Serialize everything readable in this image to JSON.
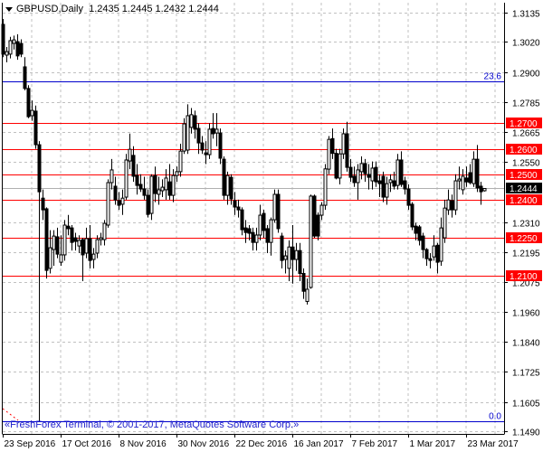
{
  "header": {
    "symbol": "GBPUSD,Daily",
    "ohlc": "1.2435 1.2445 1.2432 1.2444"
  },
  "copyright": "«FreshForex Terminal, © 2001-2017, MetaQuotes Software Corp.»",
  "colors": {
    "background": "#ffffff",
    "candle": "#000000",
    "support_resistance": "#ff0000",
    "fibonacci": "#0000cc",
    "grid": "#c0c0c0",
    "current_price_bg": "#000000"
  },
  "chart_data": {
    "type": "candlestick",
    "title": "GBPUSD,Daily",
    "ylim": [
      1.149,
      1.3135
    ],
    "grid": true,
    "y_ticks": [
      "1.3135",
      "1.3020",
      "1.2900",
      "1.2785",
      "1.2665",
      "1.2550",
      "1.2310",
      "1.2195",
      "1.2075",
      "1.1960",
      "1.1840",
      "1.1725",
      "1.1605",
      "1.1490"
    ],
    "x_ticks": [
      {
        "bar": 0,
        "label": "23 Sep 2016"
      },
      {
        "bar": 16,
        "label": "17 Oct 2016"
      },
      {
        "bar": 32,
        "label": "8 Nov 2016"
      },
      {
        "bar": 48,
        "label": "30 Nov 2016"
      },
      {
        "bar": 64,
        "label": "22 Dec 2016"
      },
      {
        "bar": 80,
        "label": "16 Jan 2017"
      },
      {
        "bar": 96,
        "label": "7 Feb 2017"
      },
      {
        "bar": 112,
        "label": "1 Mar 2017"
      },
      {
        "bar": 128,
        "label": "23 Mar 2017"
      }
    ],
    "current_price": "1.2444",
    "horizontal_levels": [
      "1.2700",
      "1.2600",
      "1.2500",
      "1.2400",
      "1.2250",
      "1.2100"
    ],
    "fibonacci_levels": [
      {
        "label": "23.6",
        "price": 1.2865
      },
      {
        "label": "0.0",
        "price": 1.153
      }
    ],
    "ohlc": [
      [
        1.3089,
        1.311,
        1.296,
        1.2972
      ],
      [
        1.2968,
        1.3,
        1.294,
        1.2982
      ],
      [
        1.2972,
        1.304,
        1.2955,
        1.3025
      ],
      [
        1.3014,
        1.3045,
        1.299,
        1.3028
      ],
      [
        1.3021,
        1.305,
        1.295,
        1.2965
      ],
      [
        1.3014,
        1.303,
        1.296,
        1.2972
      ],
      [
        1.2922,
        1.296,
        1.283,
        1.2837
      ],
      [
        1.2837,
        1.285,
        1.272,
        1.2726
      ],
      [
        1.273,
        1.279,
        1.271,
        1.2751
      ],
      [
        1.2748,
        1.277,
        1.26,
        1.2616
      ],
      [
        1.2616,
        1.263,
        1.153,
        1.2431
      ],
      [
        1.2406,
        1.244,
        1.232,
        1.236
      ],
      [
        1.2364,
        1.237,
        1.209,
        1.2122
      ],
      [
        1.213,
        1.228,
        1.211,
        1.2211
      ],
      [
        1.2204,
        1.228,
        1.214,
        1.2257
      ],
      [
        1.2254,
        1.229,
        1.217,
        1.2186
      ],
      [
        1.2154,
        1.226,
        1.214,
        1.2183
      ],
      [
        1.2183,
        1.232,
        1.216,
        1.23
      ],
      [
        1.2296,
        1.234,
        1.226,
        1.2286
      ],
      [
        1.2289,
        1.23,
        1.22,
        1.2232
      ],
      [
        1.225,
        1.227,
        1.22,
        1.2236
      ],
      [
        1.2218,
        1.226,
        1.219,
        1.224
      ],
      [
        1.2243,
        1.225,
        1.208,
        1.2183
      ],
      [
        1.219,
        1.229,
        1.217,
        1.2247
      ],
      [
        1.2247,
        1.23,
        1.213,
        1.2161
      ],
      [
        1.2165,
        1.221,
        1.213,
        1.2186
      ],
      [
        1.219,
        1.226,
        1.217,
        1.2243
      ],
      [
        1.2243,
        1.227,
        1.222,
        1.225
      ],
      [
        1.2243,
        1.232,
        1.222,
        1.2307
      ],
      [
        1.23,
        1.248,
        1.229,
        1.2467
      ],
      [
        1.2467,
        1.256,
        1.244,
        1.2517
      ],
      [
        1.2453,
        1.249,
        1.238,
        1.2399
      ],
      [
        1.2396,
        1.243,
        1.236,
        1.2378
      ],
      [
        1.2382,
        1.244,
        1.234,
        1.2406
      ],
      [
        1.241,
        1.258,
        1.24,
        1.2556
      ],
      [
        1.2552,
        1.266,
        1.252,
        1.2598
      ],
      [
        1.2574,
        1.261,
        1.247,
        1.2492
      ],
      [
        1.2495,
        1.254,
        1.242,
        1.2456
      ],
      [
        1.246,
        1.25,
        1.243,
        1.2442
      ],
      [
        1.2442,
        1.249,
        1.24,
        1.2417
      ],
      [
        1.2417,
        1.244,
        1.233,
        1.2342
      ],
      [
        1.2346,
        1.25,
        1.232,
        1.2492
      ],
      [
        1.2495,
        1.253,
        1.239,
        1.2424
      ],
      [
        1.2421,
        1.249,
        1.238,
        1.2439
      ],
      [
        1.2435,
        1.248,
        1.241,
        1.2449
      ],
      [
        1.2439,
        1.252,
        1.24,
        1.2485
      ],
      [
        1.247,
        1.254,
        1.24,
        1.2417
      ],
      [
        1.2417,
        1.252,
        1.239,
        1.2495
      ],
      [
        1.2495,
        1.253,
        1.247,
        1.251
      ],
      [
        1.251,
        1.262,
        1.249,
        1.2591
      ],
      [
        1.2591,
        1.272,
        1.258,
        1.2698
      ],
      [
        1.2595,
        1.2775,
        1.258,
        1.273
      ],
      [
        1.2684,
        1.276,
        1.266,
        1.2734
      ],
      [
        1.273,
        1.275,
        1.264,
        1.2677
      ],
      [
        1.268,
        1.27,
        1.258,
        1.2623
      ],
      [
        1.2623,
        1.265,
        1.258,
        1.2595
      ],
      [
        1.2584,
        1.263,
        1.254,
        1.2577
      ],
      [
        1.2577,
        1.27,
        1.256,
        1.2677
      ],
      [
        1.268,
        1.274,
        1.264,
        1.2659
      ],
      [
        1.2662,
        1.274,
        1.261,
        1.2677
      ],
      [
        1.2662,
        1.268,
        1.254,
        1.2563
      ],
      [
        1.2559,
        1.257,
        1.24,
        1.2417
      ],
      [
        1.2417,
        1.251,
        1.238,
        1.2495
      ],
      [
        1.2488,
        1.25,
        1.238,
        1.2403
      ],
      [
        1.2396,
        1.243,
        1.234,
        1.2371
      ],
      [
        1.2371,
        1.24,
        1.233,
        1.236
      ],
      [
        1.236,
        1.237,
        1.226,
        1.2282
      ],
      [
        1.2289,
        1.232,
        1.223,
        1.2271
      ],
      [
        1.2286,
        1.23,
        1.224,
        1.2268
      ],
      [
        1.2271,
        1.229,
        1.22,
        1.2232
      ],
      [
        1.2232,
        1.229,
        1.22,
        1.2261
      ],
      [
        1.2261,
        1.238,
        1.224,
        1.2339
      ],
      [
        1.2346,
        1.236,
        1.225,
        1.2279
      ],
      [
        1.2286,
        1.23,
        1.219,
        1.2232
      ],
      [
        1.2232,
        1.233,
        1.218,
        1.2321
      ],
      [
        1.2321,
        1.244,
        1.231,
        1.2421
      ],
      [
        1.2421,
        1.244,
        1.227,
        1.2286
      ],
      [
        1.2257,
        1.227,
        1.213,
        1.2161
      ],
      [
        1.2165,
        1.22,
        1.211,
        1.2179
      ],
      [
        1.213,
        1.224,
        1.208,
        1.2214
      ],
      [
        1.2214,
        1.23,
        1.207,
        1.2165
      ],
      [
        1.2165,
        1.223,
        1.212,
        1.22
      ],
      [
        1.22,
        1.223,
        1.208,
        1.211
      ],
      [
        1.211,
        1.213,
        1.201,
        1.204
      ],
      [
        1.2,
        1.209,
        1.1988,
        1.2048
      ],
      [
        1.2055,
        1.242,
        1.205,
        1.2414
      ],
      [
        1.2414,
        1.242,
        1.225,
        1.2257
      ],
      [
        1.2339,
        1.235,
        1.224,
        1.2257
      ],
      [
        1.2339,
        1.239,
        1.232,
        1.2378
      ],
      [
        1.2378,
        1.254,
        1.236,
        1.2521
      ],
      [
        1.252,
        1.265,
        1.25,
        1.2637
      ],
      [
        1.264,
        1.268,
        1.256,
        1.2582
      ],
      [
        1.2582,
        1.26,
        1.248,
        1.2485
      ],
      [
        1.2485,
        1.26,
        1.246,
        1.258
      ],
      [
        1.258,
        1.268,
        1.256,
        1.2659
      ],
      [
        1.2659,
        1.2706,
        1.251,
        1.2527
      ],
      [
        1.2527,
        1.256,
        1.247,
        1.2488
      ],
      [
        1.2492,
        1.253,
        1.245,
        1.2467
      ],
      [
        1.2467,
        1.254,
        1.24,
        1.2517
      ],
      [
        1.251,
        1.257,
        1.248,
        1.2542
      ],
      [
        1.2542,
        1.256,
        1.247,
        1.2502
      ],
      [
        1.2499,
        1.254,
        1.244,
        1.2488
      ],
      [
        1.2474,
        1.255,
        1.244,
        1.2524
      ],
      [
        1.2527,
        1.255,
        1.245,
        1.247
      ],
      [
        1.2474,
        1.25,
        1.241,
        1.2463
      ],
      [
        1.2492,
        1.251,
        1.239,
        1.241
      ],
      [
        1.241,
        1.249,
        1.238,
        1.2463
      ],
      [
        1.2467,
        1.25,
        1.243,
        1.2478
      ],
      [
        1.2474,
        1.251,
        1.244,
        1.2453
      ],
      [
        1.2456,
        1.258,
        1.244,
        1.2556
      ],
      [
        1.2556,
        1.259,
        1.245,
        1.246
      ],
      [
        1.2474,
        1.249,
        1.242,
        1.2442
      ],
      [
        1.2442,
        1.246,
        1.236,
        1.2378
      ],
      [
        1.2382,
        1.239,
        1.228,
        1.2293
      ],
      [
        1.2296,
        1.231,
        1.224,
        1.2268
      ],
      [
        1.2293,
        1.23,
        1.222,
        1.224
      ],
      [
        1.2257,
        1.227,
        1.217,
        1.2204
      ],
      [
        1.2204,
        1.221,
        1.214,
        1.2168
      ],
      [
        1.2168,
        1.219,
        1.213,
        1.2161
      ],
      [
        1.2175,
        1.226,
        1.216,
        1.2218
      ],
      [
        1.2221,
        1.223,
        1.211,
        1.2154
      ],
      [
        1.2158,
        1.233,
        1.214,
        1.2289
      ],
      [
        1.225,
        1.24,
        1.223,
        1.2367
      ],
      [
        1.236,
        1.244,
        1.234,
        1.2399
      ],
      [
        1.2396,
        1.242,
        1.233,
        1.236
      ],
      [
        1.236,
        1.25,
        1.234,
        1.2474
      ],
      [
        1.2474,
        1.253,
        1.244,
        1.2481
      ],
      [
        1.2439,
        1.252,
        1.242,
        1.2492
      ],
      [
        1.2485,
        1.253,
        1.245,
        1.247
      ],
      [
        1.2506,
        1.254,
        1.246,
        1.2467
      ],
      [
        1.2463,
        1.259,
        1.245,
        1.2559
      ],
      [
        1.2559,
        1.2615,
        1.243,
        1.2446
      ],
      [
        1.2453,
        1.247,
        1.238,
        1.2431
      ],
      [
        1.2435,
        1.2445,
        1.2432,
        1.2444
      ]
    ]
  }
}
